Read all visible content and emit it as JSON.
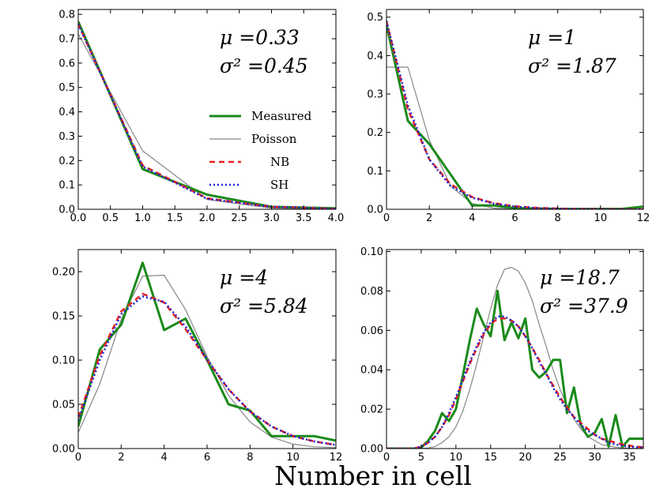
{
  "figure": {
    "xlabel": "Number in cell"
  },
  "legend": {
    "entries": [
      {
        "label": "Measured",
        "color": "#1a8a1a",
        "dash": "solid",
        "width": 3
      },
      {
        "label": "Poisson",
        "color": "#888888",
        "dash": "solid",
        "width": 1.2
      },
      {
        "label": "NB",
        "color": "#e82020",
        "dash": "dashed",
        "width": 2.5
      },
      {
        "label": "SH",
        "color": "#2020d0",
        "dash": "dotted",
        "width": 2.5
      }
    ]
  },
  "chart_data": [
    {
      "type": "line",
      "title": "",
      "stat_mu": "μ =0.33",
      "stat_sigma": "σ² =0.45",
      "xlim": [
        0,
        4
      ],
      "ylim": [
        0,
        0.82
      ],
      "xticks": [
        0,
        0.5,
        1,
        1.5,
        2,
        2.5,
        3,
        3.5,
        4
      ],
      "xticklabels": [
        "0.0",
        "0.5",
        "1.0",
        "1.5",
        "2.0",
        "2.5",
        "3.0",
        "3.5",
        "4.0"
      ],
      "yticks": [
        0,
        0.1,
        0.2,
        0.3,
        0.4,
        0.5,
        0.6,
        0.7,
        0.8
      ],
      "yticklabels": [
        "0.0",
        "0.1",
        "0.2",
        "0.3",
        "0.4",
        "0.5",
        "0.6",
        "0.7",
        "0.8"
      ],
      "series": [
        {
          "name": "Measured",
          "x": [
            0,
            1,
            2,
            3,
            4
          ],
          "y": [
            0.77,
            0.165,
            0.06,
            0.01,
            0.004
          ]
        },
        {
          "name": "Poisson",
          "x": [
            0,
            1,
            2,
            3,
            4
          ],
          "y": [
            0.72,
            0.24,
            0.04,
            0.005,
            0.001
          ]
        },
        {
          "name": "NB",
          "x": [
            0,
            1,
            2,
            3,
            4
          ],
          "y": [
            0.76,
            0.18,
            0.045,
            0.01,
            0.002
          ]
        },
        {
          "name": "SH",
          "x": [
            0,
            1,
            2,
            3,
            4
          ],
          "y": [
            0.76,
            0.175,
            0.043,
            0.01,
            0.002
          ]
        }
      ]
    },
    {
      "type": "line",
      "title": "",
      "stat_mu": "μ =1",
      "stat_sigma": "σ² =1.87",
      "xlim": [
        0,
        12
      ],
      "ylim": [
        0,
        0.52
      ],
      "xticks": [
        0,
        2,
        4,
        6,
        8,
        10,
        12
      ],
      "xticklabels": [
        "0",
        "2",
        "4",
        "6",
        "8",
        "10",
        "12"
      ],
      "yticks": [
        0,
        0.1,
        0.2,
        0.3,
        0.4,
        0.5
      ],
      "yticklabels": [
        "0.0",
        "0.1",
        "0.2",
        "0.3",
        "0.4",
        "0.5"
      ],
      "series": [
        {
          "name": "Measured",
          "x": [
            0,
            1,
            2,
            3,
            4,
            5,
            6,
            7,
            8,
            9,
            10,
            11,
            12
          ],
          "y": [
            0.48,
            0.23,
            0.17,
            0.09,
            0.01,
            0.01,
            0.003,
            0.002,
            0.001,
            0.001,
            0.001,
            0.001,
            0.007
          ]
        },
        {
          "name": "Poisson",
          "x": [
            0,
            1,
            2,
            3,
            4,
            5,
            6,
            7,
            8,
            9,
            10,
            11,
            12
          ],
          "y": [
            0.37,
            0.37,
            0.18,
            0.06,
            0.015,
            0.003,
            0.0005,
            0,
            0,
            0,
            0,
            0,
            0
          ]
        },
        {
          "name": "NB",
          "x": [
            0,
            1,
            2,
            3,
            4,
            5,
            6,
            7,
            8,
            9,
            10,
            11,
            12
          ],
          "y": [
            0.49,
            0.26,
            0.13,
            0.065,
            0.032,
            0.016,
            0.008,
            0.004,
            0.002,
            0.001,
            0.0005,
            0.0002,
            0.0001
          ]
        },
        {
          "name": "SH",
          "x": [
            0,
            1,
            2,
            3,
            4,
            5,
            6,
            7,
            8,
            9,
            10,
            11,
            12
          ],
          "y": [
            0.49,
            0.27,
            0.13,
            0.06,
            0.03,
            0.015,
            0.007,
            0.003,
            0.0015,
            0.0007,
            0.0003,
            0.0001,
            0
          ]
        }
      ]
    },
    {
      "type": "line",
      "title": "",
      "stat_mu": "μ =4",
      "stat_sigma": "σ² =5.84",
      "xlim": [
        0,
        12
      ],
      "ylim": [
        0,
        0.225
      ],
      "xticks": [
        0,
        2,
        4,
        6,
        8,
        10,
        12
      ],
      "xticklabels": [
        "0",
        "2",
        "4",
        "6",
        "8",
        "10",
        "12"
      ],
      "yticks": [
        0,
        0.05,
        0.1,
        0.15,
        0.2
      ],
      "yticklabels": [
        "0.00",
        "0.05",
        "0.10",
        "0.15",
        "0.20"
      ],
      "series": [
        {
          "name": "Measured",
          "x": [
            0,
            1,
            2,
            3,
            4,
            5,
            6,
            7,
            8,
            9,
            10,
            11,
            12
          ],
          "y": [
            0.025,
            0.112,
            0.14,
            0.21,
            0.134,
            0.147,
            0.1,
            0.05,
            0.043,
            0.014,
            0.014,
            0.014,
            0.009
          ]
        },
        {
          "name": "Poisson",
          "x": [
            0,
            1,
            2,
            3,
            4,
            5,
            6,
            7,
            8,
            9,
            10,
            11,
            12
          ],
          "y": [
            0.018,
            0.073,
            0.146,
            0.195,
            0.196,
            0.157,
            0.104,
            0.06,
            0.03,
            0.013,
            0.005,
            0.002,
            0.001
          ]
        },
        {
          "name": "NB",
          "x": [
            0,
            1,
            2,
            3,
            4,
            5,
            6,
            7,
            8,
            9,
            10,
            11,
            12
          ],
          "y": [
            0.035,
            0.105,
            0.155,
            0.175,
            0.165,
            0.135,
            0.1,
            0.067,
            0.042,
            0.025,
            0.014,
            0.008,
            0.004
          ]
        },
        {
          "name": "SH",
          "x": [
            0,
            1,
            2,
            3,
            4,
            5,
            6,
            7,
            8,
            9,
            10,
            11,
            12
          ],
          "y": [
            0.032,
            0.1,
            0.152,
            0.172,
            0.166,
            0.138,
            0.101,
            0.067,
            0.042,
            0.025,
            0.014,
            0.008,
            0.004
          ]
        }
      ]
    },
    {
      "type": "line",
      "title": "",
      "stat_mu": "μ =18.7",
      "stat_sigma": "σ² =37.9",
      "xlim": [
        0,
        37
      ],
      "ylim": [
        0,
        0.101
      ],
      "xticks": [
        0,
        5,
        10,
        15,
        20,
        25,
        30,
        35
      ],
      "xticklabels": [
        "0",
        "5",
        "10",
        "15",
        "20",
        "25",
        "30",
        "35"
      ],
      "yticks": [
        0,
        0.02,
        0.04,
        0.06,
        0.08,
        0.1
      ],
      "yticklabels": [
        "0.00",
        "0.02",
        "0.04",
        "0.06",
        "0.08",
        "0.10"
      ],
      "series": [
        {
          "name": "Measured",
          "x": [
            0,
            1,
            2,
            3,
            4,
            5,
            6,
            7,
            8,
            9,
            10,
            11,
            12,
            13,
            14,
            15,
            16,
            17,
            18,
            19,
            20,
            21,
            22,
            23,
            24,
            25,
            26,
            27,
            28,
            29,
            30,
            31,
            32,
            33,
            34,
            35,
            36,
            37
          ],
          "y": [
            0,
            0,
            0,
            0,
            0,
            0.0005,
            0.004,
            0.009,
            0.018,
            0.014,
            0.02,
            0.037,
            0.055,
            0.071,
            0.063,
            0.057,
            0.08,
            0.055,
            0.064,
            0.056,
            0.066,
            0.04,
            0.036,
            0.039,
            0.045,
            0.045,
            0.018,
            0.031,
            0.012,
            0.006,
            0.008,
            0.015,
            0.001,
            0.017,
            0.001,
            0.005,
            0.005,
            0.005
          ]
        },
        {
          "name": "Poisson",
          "x": [
            0,
            1,
            2,
            3,
            4,
            5,
            6,
            7,
            8,
            9,
            10,
            11,
            12,
            13,
            14,
            15,
            16,
            17,
            18,
            19,
            20,
            21,
            22,
            23,
            24,
            25,
            26,
            27,
            28,
            29,
            30,
            31,
            32,
            33,
            34,
            35,
            36,
            37
          ],
          "y": [
            0,
            0,
            0,
            0,
            0,
            0.0001,
            0.0003,
            0.001,
            0.003,
            0.006,
            0.011,
            0.019,
            0.03,
            0.043,
            0.057,
            0.071,
            0.083,
            0.091,
            0.092,
            0.09,
            0.084,
            0.075,
            0.063,
            0.052,
            0.04,
            0.03,
            0.022,
            0.015,
            0.01,
            0.006,
            0.004,
            0.002,
            0.0013,
            0.0007,
            0.0004,
            0.0002,
            0.0001,
            0
          ]
        },
        {
          "name": "NB",
          "x": [
            0,
            1,
            2,
            3,
            4,
            5,
            6,
            7,
            8,
            9,
            10,
            11,
            12,
            13,
            14,
            15,
            16,
            17,
            18,
            19,
            20,
            21,
            22,
            23,
            24,
            25,
            26,
            27,
            28,
            29,
            30,
            31,
            32,
            33,
            34,
            35,
            36,
            37
          ],
          "y": [
            0,
            0,
            0,
            0,
            0,
            0.001,
            0.003,
            0.006,
            0.011,
            0.017,
            0.025,
            0.034,
            0.043,
            0.051,
            0.058,
            0.063,
            0.066,
            0.066,
            0.065,
            0.062,
            0.057,
            0.051,
            0.045,
            0.038,
            0.032,
            0.026,
            0.021,
            0.016,
            0.013,
            0.01,
            0.007,
            0.005,
            0.004,
            0.003,
            0.002,
            0.0015,
            0.001,
            0.0007
          ]
        },
        {
          "name": "SH",
          "x": [
            0,
            1,
            2,
            3,
            4,
            5,
            6,
            7,
            8,
            9,
            10,
            11,
            12,
            13,
            14,
            15,
            16,
            17,
            18,
            19,
            20,
            21,
            22,
            23,
            24,
            25,
            26,
            27,
            28,
            29,
            30,
            31,
            32,
            33,
            34,
            35,
            36,
            37
          ],
          "y": [
            0,
            0,
            0,
            0,
            0,
            0.001,
            0.003,
            0.006,
            0.011,
            0.018,
            0.026,
            0.035,
            0.044,
            0.052,
            0.059,
            0.064,
            0.067,
            0.067,
            0.065,
            0.062,
            0.057,
            0.051,
            0.044,
            0.038,
            0.031,
            0.025,
            0.02,
            0.016,
            0.012,
            0.009,
            0.007,
            0.005,
            0.003,
            0.002,
            0.0015,
            0.001,
            0.0007,
            0.0005
          ]
        }
      ]
    }
  ]
}
